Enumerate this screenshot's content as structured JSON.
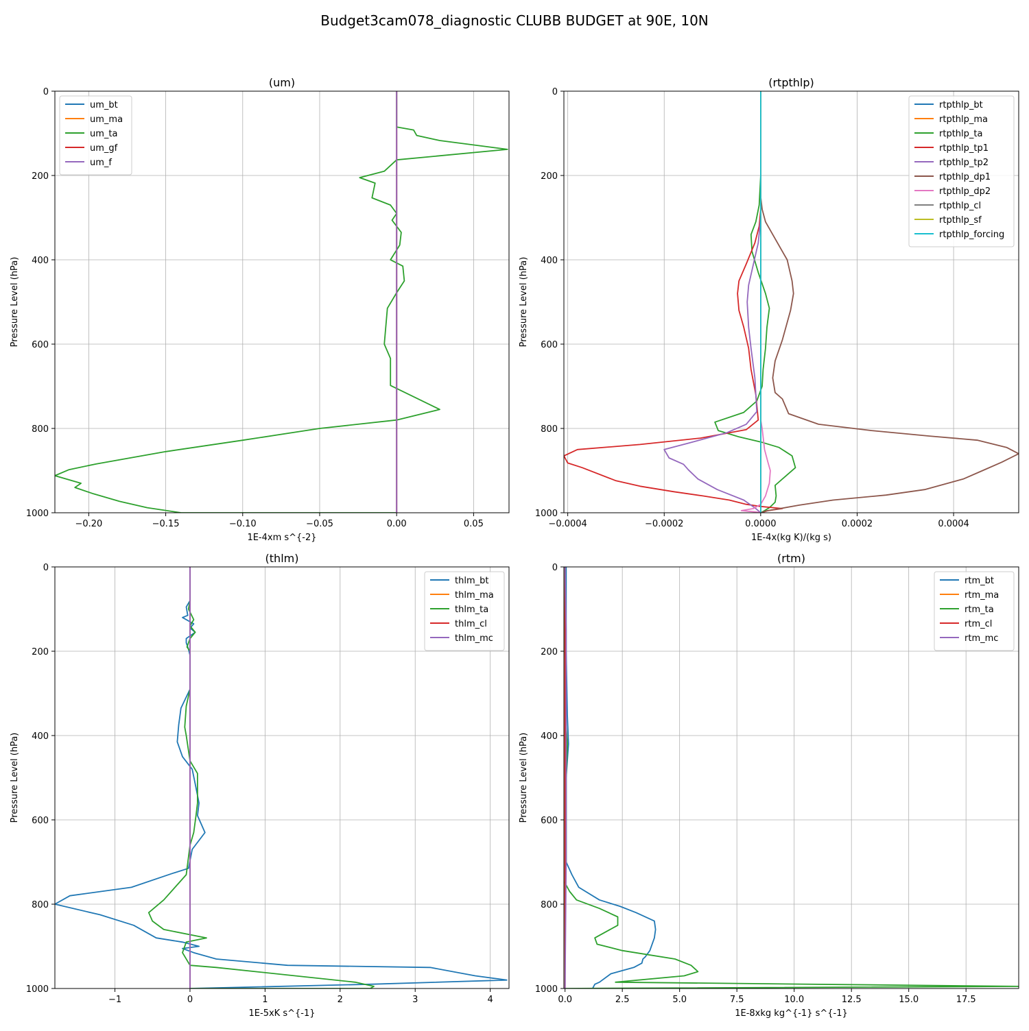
{
  "figure": {
    "title": "Budget3cam078_diagnostic CLUBB BUDGET at 90E, 10N"
  },
  "chart_data": [
    {
      "type": "line",
      "title": "(um)",
      "xlabel": "1E-4xm s^{-2}",
      "ylabel": "Pressure Level (hPa)",
      "xlim": [
        -0.222,
        0.073
      ],
      "ylim": [
        1000,
        0
      ],
      "xticks": [
        -0.2,
        -0.15,
        -0.1,
        -0.05,
        0.0,
        0.05
      ],
      "xtick_labels": [
        "−0.20",
        "−0.15",
        "−0.10",
        "−0.05",
        "0.00",
        "0.05"
      ],
      "yticks": [
        0,
        200,
        400,
        600,
        800,
        1000
      ],
      "ytick_labels": [
        "0",
        "200",
        "400",
        "600",
        "800",
        "1000"
      ],
      "grid": true,
      "legend_loc": "upper-left",
      "series": [
        {
          "name": "um_bt",
          "color": "#1f77b4",
          "x": [
            0,
            0,
            0,
            0,
            0,
            0
          ],
          "y": [
            0,
            200,
            400,
            600,
            800,
            1000
          ]
        },
        {
          "name": "um_ma",
          "color": "#ff7f0e",
          "x": [
            0,
            0,
            0,
            0,
            0,
            0
          ],
          "y": [
            0,
            200,
            400,
            600,
            800,
            1000
          ]
        },
        {
          "name": "um_ta",
          "color": "#2ca02c",
          "x": [
            0,
            0,
            0.011,
            0.013,
            0.028,
            0.072,
            0.0,
            -0.008,
            -0.024,
            -0.014,
            -0.016,
            -0.004,
            0.0,
            -0.003,
            0.003,
            0.002,
            -0.004,
            0.004,
            0.005,
            0.0,
            -0.006,
            -0.008,
            -0.004,
            -0.004,
            0.028,
            0.0,
            -0.05,
            -0.1,
            -0.15,
            -0.195,
            -0.213,
            -0.222,
            -0.205,
            -0.209,
            -0.197,
            -0.18,
            -0.162,
            -0.14,
            -0.045,
            0.0
          ],
          "y": [
            0,
            85,
            92,
            105,
            117,
            138,
            163,
            190,
            205,
            218,
            253,
            270,
            290,
            306,
            335,
            365,
            400,
            415,
            450,
            478,
            515,
            600,
            634,
            698,
            755,
            780,
            800,
            828,
            855,
            884,
            898,
            912,
            930,
            940,
            955,
            973,
            988,
            1000,
            1000,
            1000
          ]
        },
        {
          "name": "um_gf",
          "color": "#d62728",
          "x": [
            0,
            0,
            0,
            0,
            0,
            0
          ],
          "y": [
            0,
            200,
            400,
            600,
            800,
            1000
          ]
        },
        {
          "name": "um_f",
          "color": "#9467bd",
          "x": [
            0,
            0,
            0,
            0,
            0,
            0
          ],
          "y": [
            0,
            200,
            400,
            600,
            800,
            1000
          ]
        }
      ]
    },
    {
      "type": "line",
      "title": "(rtpthlp)",
      "xlabel": "1E-4x(kg K)/(kg s)",
      "ylabel": "Pressure Level (hPa)",
      "xlim": [
        -0.000408,
        0.000535
      ],
      "ylim": [
        1000,
        0
      ],
      "xticks": [
        -0.0004,
        -0.0002,
        0.0,
        0.0002,
        0.0004
      ],
      "xtick_labels": [
        "−0.0004",
        "−0.0002",
        "0.0000",
        "0.0002",
        "0.0004"
      ],
      "yticks": [
        0,
        200,
        400,
        600,
        800,
        1000
      ],
      "ytick_labels": [
        "0",
        "200",
        "400",
        "600",
        "800",
        "1000"
      ],
      "grid": true,
      "legend_loc": "upper-right",
      "series": [
        {
          "name": "rtpthlp_bt",
          "color": "#1f77b4",
          "x": [
            0,
            0
          ],
          "y": [
            0,
            1000
          ]
        },
        {
          "name": "rtpthlp_ma",
          "color": "#ff7f0e",
          "x": [
            0,
            0
          ],
          "y": [
            0,
            1000
          ]
        },
        {
          "name": "rtpthlp_ta",
          "color": "#2ca02c",
          "x": [
            0,
            0,
            -3e-06,
            -1e-05,
            -2e-05,
            -1.8e-05,
            -5e-06,
            1e-05,
            1.8e-05,
            1.3e-05,
            1e-05,
            5e-06,
            3e-06,
            -8e-06,
            -3.5e-05,
            -9.5e-05,
            -8.8e-05,
            -4.5e-05,
            0.0,
            3.8e-05,
            6.5e-05,
            7.2e-05,
            5e-05,
            3e-05,
            3.2e-05,
            3e-05,
            1.8e-05,
            8e-06,
            0.0
          ],
          "y": [
            0,
            200,
            270,
            310,
            340,
            380,
            430,
            480,
            515,
            560,
            610,
            660,
            700,
            735,
            762,
            785,
            805,
            820,
            832,
            845,
            865,
            893,
            915,
            935,
            960,
            975,
            988,
            995,
            1000
          ]
        },
        {
          "name": "rtpthlp_tp1",
          "color": "#d62728",
          "x": [
            0,
            0,
            -3e-06,
            -1.2e-05,
            -3e-05,
            -4.5e-05,
            -4.8e-05,
            -4.5e-05,
            -3.5e-05,
            -2.5e-05,
            -2e-05,
            -1e-05,
            -5e-06,
            -3e-05,
            -0.000125,
            -0.00025,
            -0.00038,
            -0.000408,
            -0.0004,
            -0.00037,
            -0.0003,
            -0.00025,
            -0.00018,
            -0.00012,
            -6.5e-05,
            -3e-05,
            0.0,
            4.5e-05,
            1.5e-05,
            0.0
          ],
          "y": [
            0,
            280,
            320,
            360,
            410,
            450,
            480,
            520,
            560,
            610,
            660,
            720,
            780,
            803,
            823,
            838,
            850,
            865,
            882,
            893,
            924,
            937,
            950,
            960,
            970,
            980,
            985,
            990,
            995,
            1000
          ]
        },
        {
          "name": "rtpthlp_tp2",
          "color": "#9467bd",
          "x": [
            0,
            0,
            -5e-06,
            -1.5e-05,
            -2.5e-05,
            -2.8e-05,
            -2.5e-05,
            -2e-05,
            -1.2e-05,
            -8e-06,
            -3e-05,
            -7e-05,
            -0.00015,
            -0.0002,
            -0.00019,
            -0.00016,
            -0.00015,
            -0.00013,
            -9e-05,
            -3.5e-05,
            -1e-05,
            0.0
          ],
          "y": [
            0,
            300,
            360,
            410,
            460,
            500,
            560,
            610,
            680,
            760,
            790,
            810,
            835,
            850,
            870,
            885,
            898,
            920,
            945,
            970,
            990,
            1000
          ]
        },
        {
          "name": "rtpthlp_dp1",
          "color": "#8c564b",
          "x": [
            0,
            0,
            3e-06,
            1e-05,
            2.5e-05,
            5.5e-05,
            6.5e-05,
            6.8e-05,
            6.2e-05,
            4.5e-05,
            3e-05,
            2.5e-05,
            3e-05,
            4.5e-05,
            5.8e-05,
            0.00012,
            0.00023,
            0.00035,
            0.00045,
            0.00051,
            0.000535,
            0.0005,
            0.00046,
            0.00042,
            0.00034,
            0.00026,
            0.00015,
            8e-05,
            4e-05,
            1e-05,
            0.0
          ],
          "y": [
            0,
            250,
            280,
            310,
            340,
            400,
            450,
            480,
            520,
            590,
            640,
            680,
            715,
            730,
            765,
            790,
            805,
            818,
            828,
            845,
            860,
            880,
            900,
            920,
            945,
            958,
            970,
            982,
            990,
            996,
            1000
          ]
        },
        {
          "name": "rtpthlp_dp2",
          "color": "#e377c2",
          "x": [
            0,
            0,
            3e-06,
            8e-06,
            1.5e-05,
            2e-05,
            1.8e-05,
            1e-05,
            0.0,
            -1.5e-05,
            -4e-05,
            -1e-05,
            0.0
          ],
          "y": [
            0,
            780,
            800,
            850,
            880,
            900,
            930,
            960,
            980,
            990,
            995,
            998,
            1000
          ]
        },
        {
          "name": "rtpthlp_cl",
          "color": "#7f7f7f",
          "x": [
            0,
            0
          ],
          "y": [
            0,
            1000
          ]
        },
        {
          "name": "rtpthlp_sf",
          "color": "#bcbd22",
          "x": [
            0,
            0
          ],
          "y": [
            0,
            1000
          ]
        },
        {
          "name": "rtpthlp_forcing",
          "color": "#17becf",
          "x": [
            0,
            0
          ],
          "y": [
            0,
            1000
          ]
        }
      ]
    },
    {
      "type": "line",
      "title": "(thlm)",
      "xlabel": "1E-5xK s^{-1}",
      "ylabel": "Pressure Level (hPa)",
      "xlim": [
        -1.8,
        4.25
      ],
      "ylim": [
        1000,
        0
      ],
      "xticks": [
        -1,
        0,
        1,
        2,
        3,
        4
      ],
      "xtick_labels": [
        "−1",
        "0",
        "1",
        "2",
        "3",
        "4"
      ],
      "yticks": [
        0,
        200,
        400,
        600,
        800,
        1000
      ],
      "ytick_labels": [
        "0",
        "200",
        "400",
        "600",
        "800",
        "1000"
      ],
      "grid": true,
      "legend_loc": "upper-right",
      "series": [
        {
          "name": "thlm_bt",
          "color": "#1f77b4",
          "x": [
            0,
            0,
            -0.05,
            -0.03,
            -0.1,
            0.05,
            0.0,
            0.07,
            -0.05,
            -0.05,
            -0.02,
            0.0,
            0.0,
            -0.12,
            -0.15,
            -0.17,
            -0.1,
            0.03,
            0.07,
            0.12,
            0.1,
            0.2,
            0.03,
            -0.02,
            -0.25,
            -0.78,
            -1.6,
            -1.8,
            -1.2,
            -0.75,
            -0.45,
            -0.1,
            0.12,
            -0.1,
            0.05,
            0.35,
            1.3,
            3.2,
            3.8,
            4.22,
            2.4,
            0
          ],
          "y": [
            0,
            80,
            95,
            115,
            120,
            135,
            145,
            155,
            170,
            180,
            195,
            210,
            290,
            335,
            375,
            415,
            450,
            480,
            515,
            560,
            590,
            630,
            670,
            715,
            728,
            760,
            780,
            800,
            825,
            850,
            880,
            890,
            900,
            905,
            915,
            930,
            945,
            950,
            970,
            980,
            990,
            1000
          ]
        },
        {
          "name": "thlm_ma",
          "color": "#ff7f0e",
          "x": [
            0,
            0
          ],
          "y": [
            0,
            1000
          ]
        },
        {
          "name": "thlm_ta",
          "color": "#2ca02c",
          "x": [
            0,
            0,
            -0.02,
            0.05,
            0.0,
            0.07,
            0.0,
            -0.03,
            -0.04,
            0.0,
            0.0,
            -0.05,
            -0.07,
            -0.05,
            0.0,
            0.1,
            0.1,
            0.08,
            0.05,
            0.0,
            -0.05,
            -0.35,
            -0.55,
            -0.5,
            -0.35,
            0.22,
            -0.05,
            -0.1,
            0.0,
            0.35,
            2.2,
            2.45,
            2.4,
            0
          ],
          "y": [
            0,
            80,
            100,
            125,
            140,
            155,
            170,
            185,
            190,
            200,
            290,
            330,
            380,
            400,
            460,
            490,
            560,
            590,
            630,
            660,
            730,
            790,
            820,
            840,
            860,
            880,
            890,
            915,
            945,
            950,
            985,
            995,
            1000,
            1000
          ]
        },
        {
          "name": "thlm_cl",
          "color": "#d62728",
          "x": [
            0,
            0
          ],
          "y": [
            0,
            1000
          ]
        },
        {
          "name": "thlm_mc",
          "color": "#9467bd",
          "x": [
            0,
            0
          ],
          "y": [
            0,
            1000
          ]
        }
      ]
    },
    {
      "type": "line",
      "title": "(rtm)",
      "xlabel": "1E-8xkg kg^{-1} s^{-1}",
      "ylabel": "Pressure Level (hPa)",
      "xlim": [
        -0.05,
        19.8
      ],
      "ylim": [
        1000,
        0
      ],
      "xticks": [
        0.0,
        2.5,
        5.0,
        7.5,
        10.0,
        12.5,
        15.0,
        17.5
      ],
      "xtick_labels": [
        "0.0",
        "2.5",
        "5.0",
        "7.5",
        "10.0",
        "12.5",
        "15.0",
        "17.5"
      ],
      "yticks": [
        0,
        200,
        400,
        600,
        800,
        1000
      ],
      "ytick_labels": [
        "0",
        "200",
        "400",
        "600",
        "800",
        "1000"
      ],
      "grid": true,
      "legend_loc": "upper-right",
      "series": [
        {
          "name": "rtm_bt",
          "color": "#1f77b4",
          "x": [
            0.05,
            0.05,
            0.1,
            0.15,
            0.05,
            0.05,
            0.3,
            0.6,
            1.5,
            2.4,
            3.1,
            3.9,
            3.95,
            3.9,
            3.7,
            3.5,
            3.4,
            3.35,
            3.0,
            2.0,
            1.5,
            1.3,
            1.2,
            1.2
          ],
          "y": [
            0,
            200,
            350,
            420,
            500,
            700,
            730,
            760,
            790,
            805,
            820,
            840,
            860,
            880,
            910,
            925,
            930,
            940,
            950,
            965,
            985,
            990,
            1000,
            1000
          ]
        },
        {
          "name": "rtm_ma",
          "color": "#ff7f0e",
          "x": [
            0,
            0
          ],
          "y": [
            0,
            1000
          ]
        },
        {
          "name": "rtm_ta",
          "color": "#2ca02c",
          "x": [
            0,
            0,
            0.05,
            0.1,
            0.05,
            0.05,
            0.0,
            0.2,
            0.5,
            1.5,
            2.3,
            2.3,
            1.3,
            1.4,
            2.5,
            4.8,
            5.5,
            5.8,
            5.2,
            2.2,
            19.8,
            0.0
          ],
          "y": [
            0,
            200,
            380,
            420,
            500,
            700,
            750,
            770,
            790,
            810,
            830,
            850,
            880,
            895,
            910,
            930,
            945,
            960,
            970,
            985,
            995,
            1000
          ]
        },
        {
          "name": "rtm_cl",
          "color": "#d62728",
          "x": [
            0,
            0
          ],
          "y": [
            0,
            1000
          ]
        },
        {
          "name": "rtm_mc",
          "color": "#9467bd",
          "x": [
            0.0,
            0.05,
            0.05,
            0.0
          ],
          "y": [
            0,
            150,
            700,
            1000
          ]
        }
      ]
    }
  ]
}
